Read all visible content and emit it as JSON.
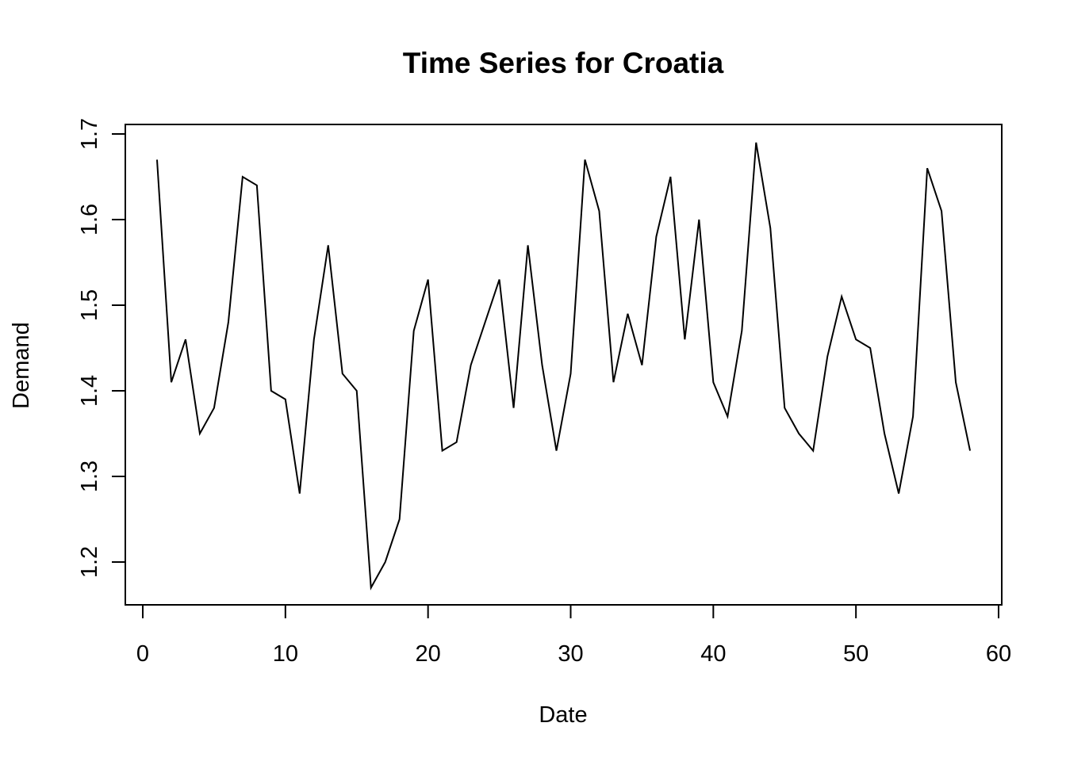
{
  "chart_data": {
    "type": "line",
    "title": "Time Series for Croatia",
    "xlabel": "Date",
    "ylabel": "Demand",
    "xlim": [
      0,
      60
    ],
    "ylim": [
      1.15,
      1.71
    ],
    "x_ticks": [
      "0",
      "10",
      "20",
      "30",
      "40",
      "50",
      "60"
    ],
    "y_ticks": [
      "1.2",
      "1.3",
      "1.4",
      "1.5",
      "1.6",
      "1.7"
    ],
    "grid": false,
    "color": "#000000",
    "series": [
      {
        "x": [
          1,
          2,
          3,
          4,
          5,
          6,
          7,
          8,
          9,
          10,
          11,
          12,
          13,
          14,
          15,
          16,
          17,
          18,
          19,
          20,
          21,
          22,
          23,
          24,
          25,
          26,
          27,
          28,
          29,
          30,
          31,
          32,
          33,
          34,
          35,
          36,
          37,
          38,
          39,
          40,
          41,
          42,
          43,
          44,
          45,
          46,
          47,
          48,
          49,
          50,
          51,
          52,
          53,
          54,
          55,
          56,
          57,
          58
        ],
        "y": [
          1.67,
          1.41,
          1.46,
          1.35,
          1.38,
          1.48,
          1.65,
          1.64,
          1.4,
          1.39,
          1.28,
          1.46,
          1.57,
          1.42,
          1.4,
          1.17,
          1.2,
          1.25,
          1.47,
          1.53,
          1.33,
          1.34,
          1.43,
          1.48,
          1.53,
          1.38,
          1.57,
          1.43,
          1.33,
          1.42,
          1.67,
          1.61,
          1.41,
          1.49,
          1.43,
          1.58,
          1.65,
          1.46,
          1.6,
          1.41,
          1.37,
          1.47,
          1.69,
          1.59,
          1.38,
          1.35,
          1.33,
          1.44,
          1.51,
          1.46,
          1.45,
          1.35,
          1.28,
          1.37,
          1.66,
          1.61,
          1.41,
          1.33
        ]
      }
    ]
  }
}
